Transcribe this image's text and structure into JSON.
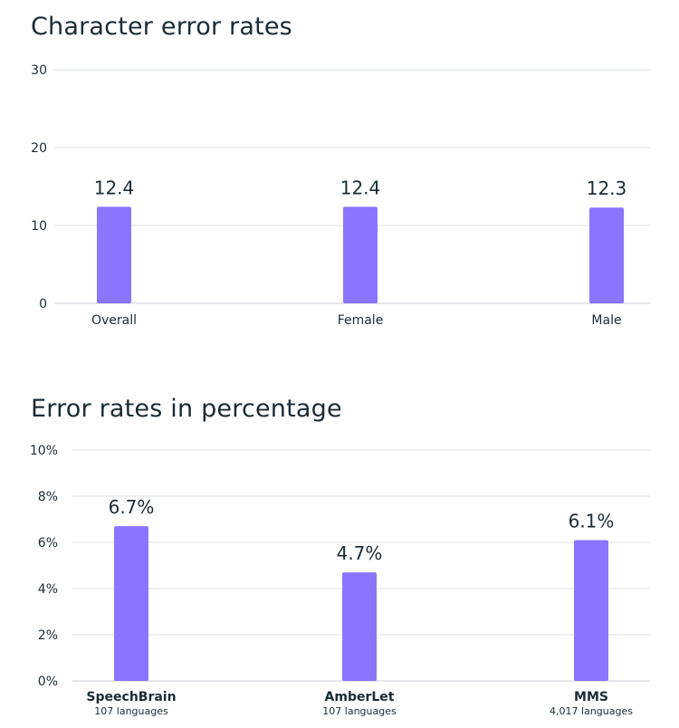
{
  "chart_data": [
    {
      "type": "bar",
      "title": "Character error rates",
      "categories": [
        "Overall",
        "Female",
        "Male"
      ],
      "values": [
        12.4,
        12.4,
        12.3
      ],
      "value_labels": [
        "12.4",
        "12.4",
        "12.3"
      ],
      "yticks": [
        "0",
        "10",
        "20",
        "30"
      ],
      "ylim": [
        0,
        30
      ],
      "xlabel": "",
      "ylabel": "",
      "grid": true,
      "bar_color": "#8b74ff"
    },
    {
      "type": "bar",
      "title": "Error rates in percentage",
      "categories": [
        "SpeechBrain",
        "AmberLet",
        "MMS"
      ],
      "subcategories": [
        "107 languages",
        "107 languages",
        "4,017 languages"
      ],
      "values": [
        6.7,
        4.7,
        6.1
      ],
      "value_labels": [
        "6.7%",
        "4.7%",
        "6.1%"
      ],
      "yticks": [
        "0%",
        "2%",
        "4%",
        "6%",
        "8%",
        "10%"
      ],
      "ylim": [
        0,
        10
      ],
      "xlabel": "",
      "ylabel": "",
      "grid": true,
      "bar_color": "#8b74ff"
    }
  ]
}
